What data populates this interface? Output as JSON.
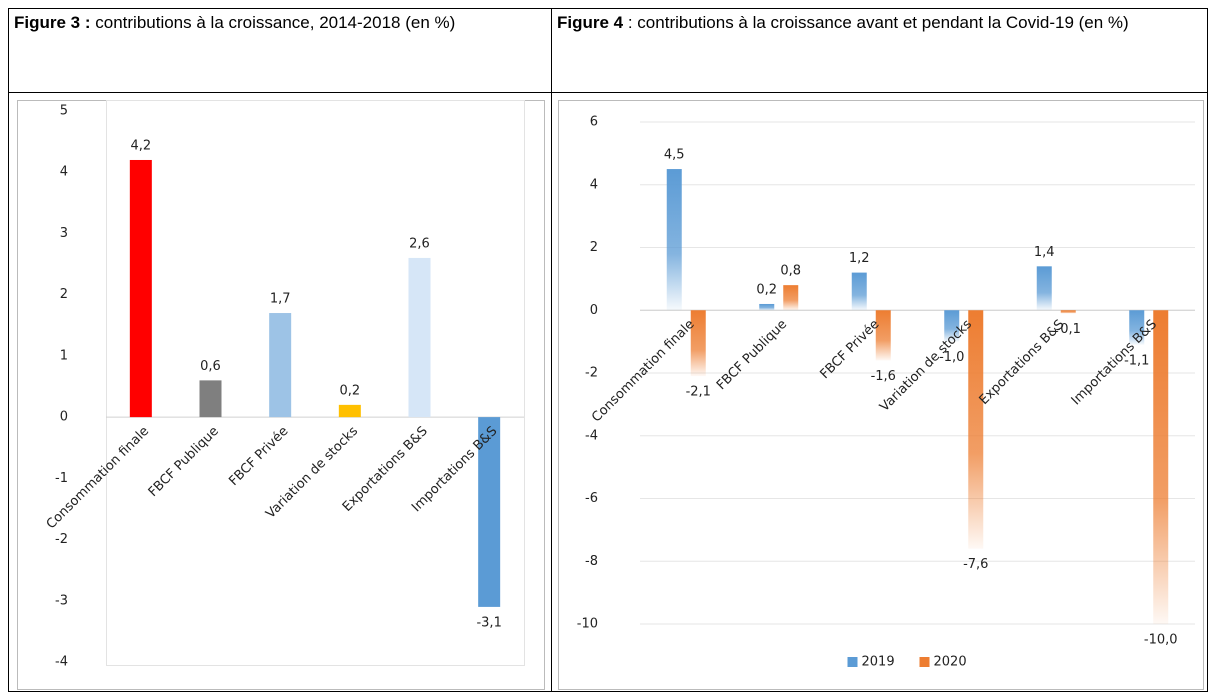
{
  "captions": [
    {
      "label": "Figure 3 :",
      "text": "contributions à la croissance, 2014-2018 (en %)"
    },
    {
      "label": "Figure 4",
      "text": ": contributions à la croissance avant et pendant la Covid-19 (en %)"
    }
  ],
  "chart_data": [
    {
      "type": "bar",
      "categories": [
        "Consommation finale",
        "FBCF Publique",
        "FBCF Privée",
        "Variation de stocks",
        "Exportations B&S",
        "Importations B&S"
      ],
      "values": [
        4.2,
        0.6,
        1.7,
        0.2,
        2.6,
        -3.1
      ],
      "value_labels": [
        "4,2",
        "0,6",
        "1,7",
        "0,2",
        "2,6",
        "-3,1"
      ],
      "colors": [
        "#ff0000",
        "#7f7f7f",
        "#9dc3e6",
        "#ffc000",
        "#d6e6f7",
        "#5b9bd5"
      ],
      "ylim": [
        -4,
        5
      ],
      "yticks": [
        -4,
        -3,
        -2,
        -1,
        0,
        1,
        2,
        3,
        4,
        5
      ],
      "grid": false
    },
    {
      "type": "bar",
      "categories": [
        "Consommation finale",
        "FBCF Publique",
        "FBCF Privée",
        "Variation de stocks",
        "Exportations B&S",
        "Importations B&S"
      ],
      "series": [
        {
          "name": "2019",
          "color": "#5b9bd5",
          "values": [
            4.5,
            0.2,
            1.2,
            -1.0,
            1.4,
            -1.1
          ],
          "value_labels": [
            "4,5",
            "0,2",
            "1,2",
            "-1,0",
            "1,4",
            "-1,1"
          ]
        },
        {
          "name": "2020",
          "color": "#ed7d31",
          "values": [
            -2.1,
            0.8,
            -1.6,
            -7.6,
            -0.1,
            -10.0
          ],
          "value_labels": [
            "-2,1",
            "0,8",
            "-1,6",
            "-7,6",
            "-0,1",
            "-10,0"
          ]
        }
      ],
      "ylim": [
        -10,
        6
      ],
      "yticks": [
        -10,
        -8,
        -6,
        -4,
        -2,
        0,
        2,
        4,
        6
      ],
      "grid": true,
      "legend": "bottom"
    }
  ]
}
